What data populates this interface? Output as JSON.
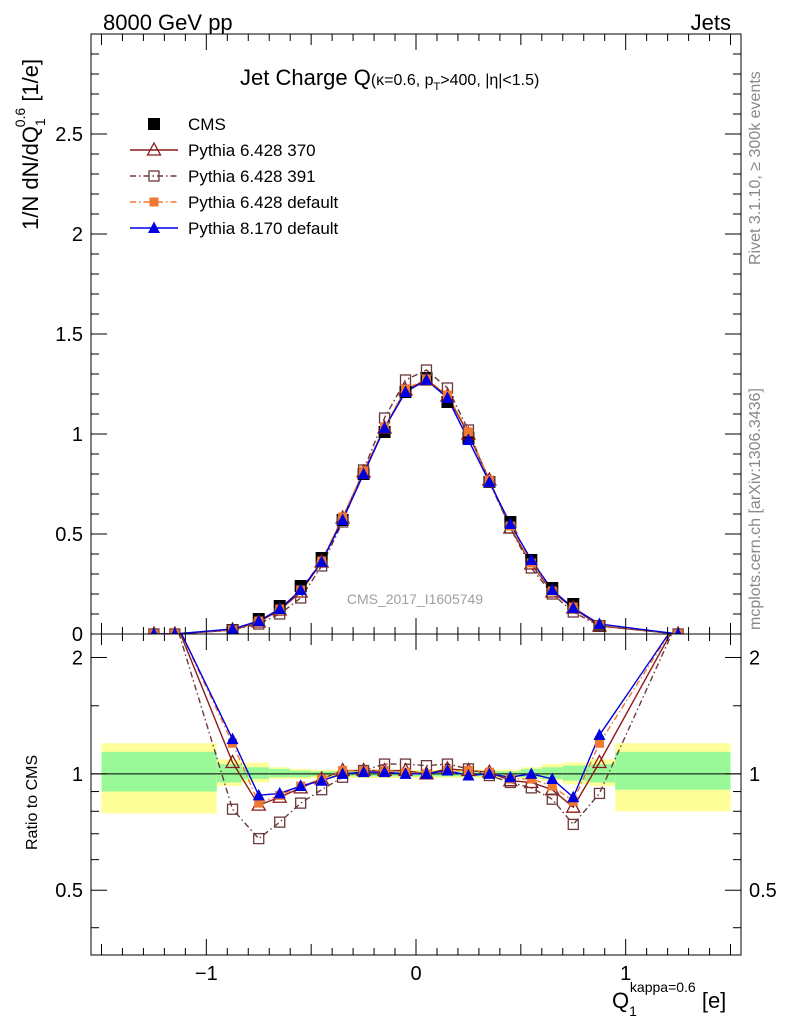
{
  "header": {
    "left": "8000 GeV pp",
    "right": "Jets"
  },
  "side_labels": {
    "rivet": "Rivet 3.1.10, ≥ 300k events",
    "mcplots": "mcplots.cern.ch [arXiv:1306.3436]"
  },
  "watermark": "CMS_2017_I1605749",
  "colors": {
    "cms": "#000000",
    "p370": "#8b1a1a",
    "p391": "#6b3a3a",
    "p6def": "#f07830",
    "p8def": "#0000e0",
    "band_inner": "#99f999",
    "band_outer": "#ffff99"
  },
  "chart_data": {
    "type": "line",
    "title": {
      "main": "Jet Charge Q",
      "detail_a": "(κ=0.6, p",
      "detail_sub": "T",
      "detail_b": ">400, |η|<1.5)"
    },
    "ylabel": {
      "a": "1/N dN/dQ",
      "sup": "0.6",
      "sub": "1",
      "b": " [1/e]"
    },
    "xlabel": {
      "a": "Q",
      "sub": "1",
      "sup": "kappa=0.6",
      "b": " [e]"
    },
    "ratio_ylabel": "Ratio to CMS",
    "xlim": [
      -1.55,
      1.55
    ],
    "ylim": [
      0,
      3.0
    ],
    "ratio_ylim": [
      0.34,
      2.3
    ],
    "x_ticks": [
      -1,
      0,
      1
    ],
    "x_tick_labels": [
      "−1",
      "0",
      "1"
    ],
    "y_ticks": [
      0,
      0.5,
      1,
      1.5,
      2,
      2.5
    ],
    "y_tick_labels": [
      "0",
      "0.5",
      "1",
      "1.5",
      "2",
      "2.5"
    ],
    "ratio_ticks": [
      0.5,
      1,
      2
    ],
    "ratio_tick_labels": [
      "0.5",
      "1",
      "2"
    ],
    "legend_position": "top-left",
    "x": [
      -1.25,
      -1.15,
      -0.875,
      -0.75,
      -0.65,
      -0.55,
      -0.45,
      -0.35,
      -0.25,
      -0.15,
      -0.05,
      0.05,
      0.15,
      0.25,
      0.35,
      0.45,
      0.55,
      0.65,
      0.75,
      0.875,
      1.25
    ],
    "series": [
      {
        "name": "CMS",
        "key": "cms",
        "marker": "square-filled",
        "dash": "",
        "values": [
          0.0,
          0.0,
          0.02,
          0.075,
          0.14,
          0.24,
          0.38,
          0.57,
          0.8,
          1.01,
          1.21,
          1.28,
          1.16,
          0.98,
          0.76,
          0.56,
          0.37,
          0.23,
          0.15,
          0.04,
          0.0
        ],
        "ratio": null
      },
      {
        "name": "Pythia 6.428 370",
        "key": "p370",
        "marker": "triangle-open",
        "dash": "",
        "values": [
          0.0,
          0.0,
          0.02,
          0.06,
          0.12,
          0.21,
          0.36,
          0.58,
          0.81,
          1.03,
          1.22,
          1.27,
          1.19,
          1.0,
          0.77,
          0.53,
          0.35,
          0.21,
          0.13,
          0.04,
          0.0
        ],
        "ratio": [
          null,
          2.5,
          1.07,
          0.83,
          0.87,
          0.92,
          0.97,
          1.02,
          1.02,
          1.02,
          1.02,
          1.0,
          1.03,
          1.02,
          1.01,
          0.96,
          0.95,
          0.91,
          0.82,
          1.07,
          2.5
        ]
      },
      {
        "name": "Pythia 6.428 391",
        "key": "p391",
        "marker": "square-open",
        "dash": "6,3,1.5,3",
        "values": [
          0.0,
          0.0,
          0.02,
          0.05,
          0.1,
          0.18,
          0.34,
          0.56,
          0.82,
          1.08,
          1.27,
          1.32,
          1.23,
          1.02,
          0.76,
          0.53,
          0.33,
          0.2,
          0.11,
          0.04,
          0.0
        ],
        "ratio": [
          null,
          2.5,
          0.81,
          0.68,
          0.75,
          0.84,
          0.91,
          0.98,
          1.02,
          1.06,
          1.06,
          1.05,
          1.06,
          1.03,
          0.99,
          0.95,
          0.92,
          0.86,
          0.74,
          0.89,
          2.5
        ]
      },
      {
        "name": "Pythia 6.428 default",
        "key": "p6def",
        "marker": "square-filled-small",
        "dash": "6,3,1.5,3",
        "values": [
          0.0,
          0.0,
          0.02,
          0.065,
          0.125,
          0.22,
          0.365,
          0.585,
          0.815,
          1.035,
          1.225,
          1.275,
          1.195,
          1.01,
          0.77,
          0.54,
          0.355,
          0.215,
          0.135,
          0.045,
          0.0
        ],
        "ratio": [
          null,
          2.5,
          1.2,
          0.84,
          0.88,
          0.93,
          0.97,
          1.02,
          1.02,
          1.02,
          1.01,
          1.0,
          1.02,
          1.02,
          1.01,
          0.97,
          0.97,
          0.93,
          0.85,
          1.2,
          2.5
        ]
      },
      {
        "name": "Pythia 8.170 default",
        "key": "p8def",
        "marker": "triangle-filled",
        "dash": "",
        "values": [
          0.0,
          0.0,
          0.025,
          0.065,
          0.125,
          0.22,
          0.36,
          0.57,
          0.8,
          1.03,
          1.21,
          1.27,
          1.18,
          0.97,
          0.76,
          0.55,
          0.37,
          0.22,
          0.13,
          0.05,
          0.0
        ],
        "ratio": [
          null,
          2.5,
          1.23,
          0.88,
          0.89,
          0.93,
          0.96,
          1.0,
          1.01,
          1.01,
          1.0,
          1.0,
          1.02,
          0.99,
          1.0,
          0.98,
          1.0,
          0.97,
          0.87,
          1.26,
          2.5
        ]
      }
    ],
    "uncertainty_bands": [
      {
        "x0": -1.5,
        "x1": -0.95,
        "inner": [
          0.9,
          1.14
        ],
        "outer": [
          0.79,
          1.2
        ]
      },
      {
        "x0": -0.95,
        "x1": -0.83,
        "inner": [
          0.95,
          1.06
        ],
        "outer": [
          0.93,
          1.09
        ]
      },
      {
        "x0": -0.83,
        "x1": -0.7,
        "inner": [
          0.97,
          1.04
        ],
        "outer": [
          0.95,
          1.07
        ]
      },
      {
        "x0": -0.7,
        "x1": -0.6,
        "inner": [
          0.98,
          1.03
        ],
        "outer": [
          0.97,
          1.04
        ]
      },
      {
        "x0": -0.6,
        "x1": -0.5,
        "inner": [
          0.98,
          1.02
        ],
        "outer": [
          0.97,
          1.03
        ]
      },
      {
        "x0": -0.5,
        "x1": 0.5,
        "inner": [
          0.985,
          1.015
        ],
        "outer": [
          0.975,
          1.025
        ]
      },
      {
        "x0": 0.5,
        "x1": 0.6,
        "inner": [
          0.98,
          1.03
        ],
        "outer": [
          0.97,
          1.04
        ]
      },
      {
        "x0": 0.6,
        "x1": 0.7,
        "inner": [
          0.97,
          1.04
        ],
        "outer": [
          0.96,
          1.06
        ]
      },
      {
        "x0": 0.7,
        "x1": 0.83,
        "inner": [
          0.96,
          1.05
        ],
        "outer": [
          0.94,
          1.07
        ]
      },
      {
        "x0": 0.83,
        "x1": 0.95,
        "inner": [
          0.95,
          1.06
        ],
        "outer": [
          0.93,
          1.09
        ]
      },
      {
        "x0": 0.95,
        "x1": 1.5,
        "inner": [
          0.91,
          1.14
        ],
        "outer": [
          0.8,
          1.2
        ]
      }
    ]
  }
}
